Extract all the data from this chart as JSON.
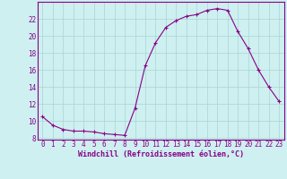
{
  "hours": [
    0,
    1,
    2,
    3,
    4,
    5,
    6,
    7,
    8,
    9,
    10,
    11,
    12,
    13,
    14,
    15,
    16,
    17,
    18,
    19,
    20,
    21,
    22,
    23
  ],
  "values": [
    10.5,
    9.5,
    9.0,
    8.8,
    8.8,
    8.7,
    8.5,
    8.4,
    8.3,
    11.5,
    16.5,
    19.2,
    21.0,
    21.8,
    22.3,
    22.5,
    23.0,
    23.2,
    23.0,
    20.5,
    18.5,
    16.0,
    14.0,
    12.3
  ],
  "line_color": "#880088",
  "marker": "+",
  "marker_size": 3,
  "line_width": 0.8,
  "bg_color": "#cef0f0",
  "grid_color": "#aad4d4",
  "xlabel": "Windchill (Refroidissement éolien,°C)",
  "xlabel_color": "#880088",
  "xlabel_fontsize": 6.0,
  "tick_color": "#880088",
  "tick_fontsize": 5.5,
  "ylim": [
    7.8,
    24.0
  ],
  "yticks": [
    8,
    10,
    12,
    14,
    16,
    18,
    20,
    22
  ],
  "xlim": [
    -0.5,
    23.5
  ],
  "spine_color": "#880088"
}
